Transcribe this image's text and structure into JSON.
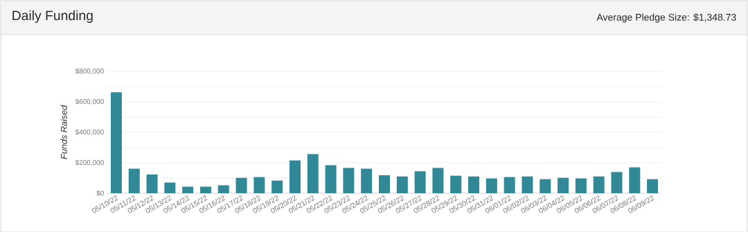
{
  "chart_data": {
    "type": "bar",
    "title": "Daily Funding",
    "subtitle": "Average Pledge Size: $1,348.73",
    "ylabel": "Funds Raised",
    "categories": [
      "05/10/22",
      "05/11/22",
      "05/12/22",
      "05/13/22",
      "05/14/22",
      "05/15/22",
      "05/16/22",
      "05/17/22",
      "05/18/22",
      "05/19/22",
      "05/20/22",
      "05/21/22",
      "05/22/22",
      "05/23/22",
      "05/24/22",
      "05/25/22",
      "05/26/22",
      "05/27/22",
      "05/28/22",
      "05/29/22",
      "05/30/22",
      "05/31/22",
      "06/01/22",
      "06/02/22",
      "06/03/22",
      "06/04/22",
      "06/05/22",
      "06/06/22",
      "06/07/22",
      "06/08/22",
      "06/09/22"
    ],
    "values": [
      662000,
      161000,
      123000,
      70000,
      43000,
      43000,
      52000,
      101000,
      106000,
      83000,
      215000,
      257000,
      184000,
      166000,
      161000,
      118000,
      110000,
      144000,
      166000,
      115000,
      110000,
      97000,
      106000,
      110000,
      92000,
      101000,
      97000,
      110000,
      139000,
      170000,
      92000
    ],
    "color": "#318896",
    "ylim": [
      0,
      800000
    ],
    "yticks": [
      {
        "value": 0,
        "label": "$0"
      },
      {
        "value": 100000,
        "label": null
      },
      {
        "value": 200000,
        "label": "$200,000"
      },
      {
        "value": 300000,
        "label": null
      },
      {
        "value": 400000,
        "label": "$400,000"
      },
      {
        "value": 500000,
        "label": null
      },
      {
        "value": 600000,
        "label": "$600,000"
      },
      {
        "value": 700000,
        "label": null
      },
      {
        "value": 800000,
        "label": "$800,000"
      }
    ],
    "grid": "y"
  }
}
